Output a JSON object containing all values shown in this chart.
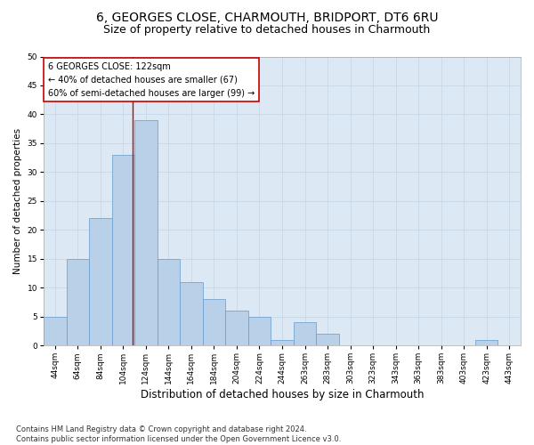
{
  "title": "6, GEORGES CLOSE, CHARMOUTH, BRIDPORT, DT6 6RU",
  "subtitle": "Size of property relative to detached houses in Charmouth",
  "xlabel": "Distribution of detached houses by size in Charmouth",
  "ylabel": "Number of detached properties",
  "footer_line1": "Contains HM Land Registry data © Crown copyright and database right 2024.",
  "footer_line2": "Contains public sector information licensed under the Open Government Licence v3.0.",
  "bin_labels": [
    "44sqm",
    "64sqm",
    "84sqm",
    "104sqm",
    "124sqm",
    "144sqm",
    "164sqm",
    "184sqm",
    "204sqm",
    "224sqm",
    "244sqm",
    "263sqm",
    "283sqm",
    "303sqm",
    "323sqm",
    "343sqm",
    "363sqm",
    "383sqm",
    "403sqm",
    "423sqm",
    "443sqm"
  ],
  "bar_heights": [
    5,
    15,
    22,
    33,
    39,
    15,
    11,
    8,
    6,
    5,
    1,
    4,
    2,
    0,
    0,
    0,
    0,
    0,
    0,
    1,
    0
  ],
  "bar_color": "#b8d0e8",
  "bar_edge_color": "#6699cc",
  "bar_edge_width": 0.5,
  "ylim": [
    0,
    50
  ],
  "yticks": [
    0,
    5,
    10,
    15,
    20,
    25,
    30,
    35,
    40,
    45,
    50
  ],
  "annotation_text_line1": "6 GEORGES CLOSE: 122sqm",
  "annotation_text_line2": "← 40% of detached houses are smaller (67)",
  "annotation_text_line3": "60% of semi-detached houses are larger (99) →",
  "annotation_box_color": "#ffffff",
  "annotation_box_edge": "#cc0000",
  "grid_color": "#c8d8e8",
  "background_color": "#dce8f4",
  "title_fontsize": 10,
  "subtitle_fontsize": 9,
  "xlabel_fontsize": 8.5,
  "ylabel_fontsize": 7.5,
  "tick_fontsize": 6.5,
  "annotation_fontsize": 7,
  "footer_fontsize": 6
}
